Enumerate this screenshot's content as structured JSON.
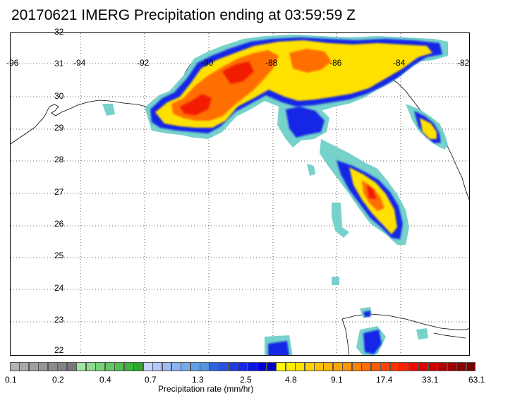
{
  "title": "20170621 IMERG Precipitation ending at 03:59:59 Z",
  "map": {
    "region": "Gulf of Mexico",
    "lon_range": [
      -96,
      -82
    ],
    "lat_range": [
      21.9,
      32
    ],
    "longitude_labels": [
      "-96",
      "-94",
      "-92",
      "-90",
      "-88",
      "-86",
      "-84",
      "-82"
    ],
    "latitude_labels": [
      "32",
      "31",
      "30",
      "29",
      "28",
      "27",
      "26",
      "25",
      "24",
      "23",
      "22"
    ],
    "gridlines": "dotted"
  },
  "colorbar": {
    "title": "Precipitation rate (mm/hr)",
    "tick_labels": [
      "0.1",
      "0.2",
      "0.4",
      "0.7",
      "1.3",
      "2.5",
      "4.8",
      "9.1",
      "17.4",
      "33.1",
      "63.1"
    ],
    "colors": [
      "#b4b4b4",
      "#aaaaaa",
      "#a0a0a0",
      "#969696",
      "#8c8c8c",
      "#828282",
      "#787878",
      "#a0e6a0",
      "#8cdc8c",
      "#78d278",
      "#64c864",
      "#50be50",
      "#3cb43c",
      "#2daa2d",
      "#c8d2ff",
      "#b4c8ff",
      "#a0bef5",
      "#8cb4f0",
      "#78aaeb",
      "#64a0e6",
      "#5096e1",
      "#2d64e6",
      "#2850e6",
      "#1e3ce6",
      "#1428e6",
      "#0a14e6",
      "#0000dc",
      "#0000c8",
      "#ffff00",
      "#fff000",
      "#ffe100",
      "#ffd200",
      "#ffc300",
      "#ffb400",
      "#ffa500",
      "#ff9600",
      "#ff8200",
      "#ff6e00",
      "#ff5a00",
      "#ff4600",
      "#ff3200",
      "#ff1e00",
      "#f00a00",
      "#dc0000",
      "#c80000",
      "#b40000",
      "#a00000",
      "#8c0000",
      "#780000"
    ]
  }
}
